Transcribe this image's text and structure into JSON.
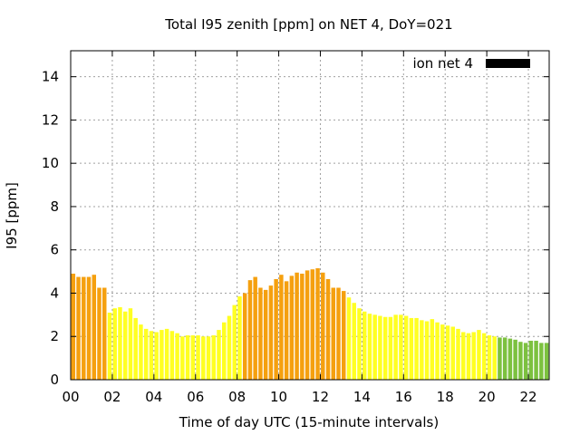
{
  "chart_data": {
    "type": "bar",
    "title": "Total I95 zenith [ppm] on NET 4, DoY=021",
    "xlabel": "Time of day UTC (15-minute intervals)",
    "ylabel": "I95 [ppm]",
    "xlim": [
      0,
      23
    ],
    "ylim": [
      0,
      15.2
    ],
    "x_ticks": [
      "00",
      "02",
      "04",
      "06",
      "08",
      "10",
      "12",
      "14",
      "16",
      "18",
      "20",
      "22"
    ],
    "y_ticks": [
      "0",
      "2",
      "4",
      "6",
      "8",
      "10",
      "12",
      "14"
    ],
    "grid": true,
    "legend": {
      "label": "ion net 4",
      "position": "top-right"
    },
    "bar_interval_hours": 0.25,
    "values": [
      4.9,
      4.75,
      4.75,
      4.75,
      4.85,
      4.25,
      4.25,
      3.1,
      3.3,
      3.35,
      3.15,
      3.3,
      2.85,
      2.55,
      2.35,
      2.25,
      2.2,
      2.3,
      2.35,
      2.25,
      2.15,
      2.0,
      2.05,
      2.05,
      2.05,
      2.0,
      2.0,
      2.05,
      2.3,
      2.65,
      2.95,
      3.45,
      3.85,
      4.0,
      4.6,
      4.75,
      4.25,
      4.15,
      4.35,
      4.65,
      4.85,
      4.55,
      4.8,
      4.95,
      4.9,
      5.05,
      5.1,
      5.15,
      4.95,
      4.65,
      4.25,
      4.25,
      4.1,
      3.8,
      3.55,
      3.3,
      3.15,
      3.05,
      3.0,
      2.95,
      2.9,
      2.9,
      3.0,
      3.0,
      2.95,
      2.85,
      2.85,
      2.75,
      2.7,
      2.8,
      2.65,
      2.55,
      2.5,
      2.45,
      2.35,
      2.2,
      2.15,
      2.2,
      2.3,
      2.15,
      2.05,
      2.0,
      1.95,
      1.95,
      1.9,
      1.85,
      1.75,
      1.7,
      1.8,
      1.8,
      1.7,
      1.7
    ],
    "colors": {
      "above_4": "#f5a00f",
      "between_2_4": "#ffff22",
      "below_2": "#7cc13f",
      "legend_swatch": "#000000",
      "grid": "#a0a0a0"
    }
  }
}
